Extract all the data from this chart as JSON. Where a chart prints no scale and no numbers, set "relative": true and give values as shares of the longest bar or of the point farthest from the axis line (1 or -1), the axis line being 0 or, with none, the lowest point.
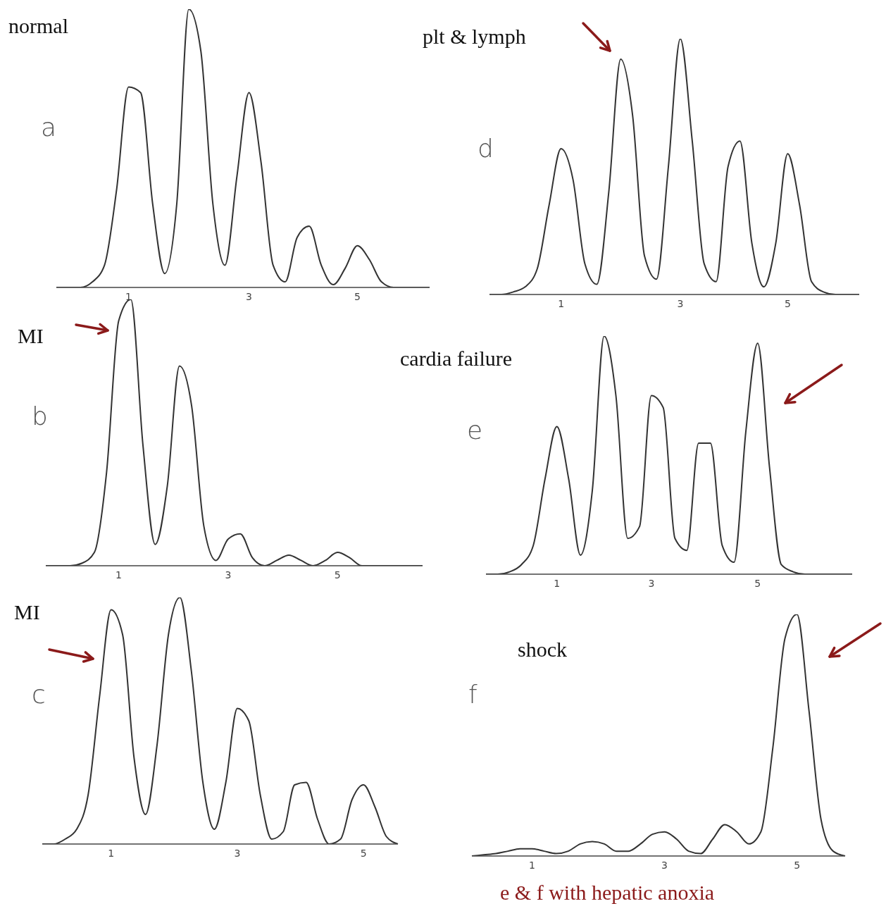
{
  "chart_data": [
    {
      "type": "line",
      "title": "normal",
      "relative": true,
      "color": "#333333",
      "annotations": [
        "a"
      ],
      "categories": [
        null,
        null,
        null,
        null,
        null,
        null,
        "1",
        null,
        null,
        null,
        null,
        null,
        null,
        null,
        null,
        null,
        "3",
        null,
        null,
        null,
        null,
        null,
        null,
        null,
        null,
        "5",
        null,
        null,
        null,
        null,
        null,
        null
      ],
      "values": [
        0,
        0,
        0,
        0.02,
        0.08,
        0.35,
        0.72,
        0.7,
        0.3,
        0.05,
        0.3,
        1,
        0.85,
        0.3,
        0.08,
        0.4,
        0.7,
        0.45,
        0.08,
        0.02,
        0.18,
        0.22,
        0.08,
        0.01,
        0.07,
        0.15,
        0.1,
        0.02,
        0,
        0,
        0,
        0
      ]
    },
    {
      "type": "line",
      "title": "MI",
      "relative": true,
      "color": "#333333",
      "annotations": [
        "b"
      ],
      "categories": [
        null,
        null,
        null,
        null,
        null,
        null,
        "1",
        null,
        null,
        null,
        null,
        null,
        null,
        null,
        null,
        "3",
        null,
        null,
        null,
        null,
        null,
        null,
        null,
        null,
        "5",
        null,
        null,
        null,
        null,
        null,
        null,
        null
      ],
      "values": [
        0,
        0,
        0,
        0.01,
        0.05,
        0.35,
        0.92,
        1,
        0.45,
        0.08,
        0.3,
        0.75,
        0.6,
        0.15,
        0.02,
        0.1,
        0.12,
        0.03,
        0,
        0.02,
        0.04,
        0.02,
        0,
        0.02,
        0.05,
        0.03,
        0,
        0,
        0,
        0,
        0,
        0
      ]
    },
    {
      "type": "line",
      "title": "MI",
      "relative": true,
      "color": "#333333",
      "annotations": [
        "c"
      ],
      "categories": [
        null,
        null,
        null,
        null,
        null,
        null,
        "1",
        null,
        null,
        null,
        null,
        null,
        null,
        null,
        null,
        null,
        null,
        "3",
        null,
        null,
        null,
        null,
        null,
        null,
        null,
        null,
        null,
        null,
        "5",
        null,
        null,
        null
      ],
      "values": [
        0,
        0,
        0.02,
        0.06,
        0.2,
        0.6,
        0.95,
        0.85,
        0.35,
        0.12,
        0.4,
        0.85,
        1,
        0.7,
        0.25,
        0.06,
        0.25,
        0.55,
        0.5,
        0.2,
        0.02,
        0.05,
        0.24,
        0.25,
        0.1,
        0,
        0.02,
        0.18,
        0.24,
        0.15,
        0.03,
        0
      ]
    },
    {
      "type": "line",
      "title": "plt & lymph",
      "relative": true,
      "color": "#333333",
      "annotations": [
        "d"
      ],
      "categories": [
        null,
        null,
        null,
        null,
        null,
        null,
        "1",
        null,
        null,
        null,
        null,
        null,
        null,
        null,
        null,
        null,
        "3",
        null,
        null,
        null,
        null,
        null,
        null,
        null,
        null,
        "5",
        null,
        null,
        null,
        null,
        null,
        null
      ],
      "values": [
        0,
        0,
        0.01,
        0.03,
        0.1,
        0.35,
        0.57,
        0.45,
        0.12,
        0.04,
        0.4,
        0.92,
        0.7,
        0.15,
        0.06,
        0.5,
        1,
        0.6,
        0.12,
        0.05,
        0.5,
        0.6,
        0.2,
        0.03,
        0.2,
        0.55,
        0.35,
        0.05,
        0.01,
        0,
        0,
        0
      ]
    },
    {
      "type": "line",
      "title": "cardia failure",
      "relative": true,
      "color": "#333333",
      "annotations": [
        "e"
      ],
      "categories": [
        null,
        null,
        null,
        null,
        null,
        null,
        "1",
        null,
        null,
        null,
        null,
        null,
        null,
        null,
        "3",
        null,
        null,
        null,
        null,
        null,
        null,
        null,
        null,
        "5",
        null,
        null,
        null,
        null,
        null,
        null,
        null,
        null
      ],
      "values": [
        0,
        0,
        0.01,
        0.04,
        0.12,
        0.4,
        0.62,
        0.4,
        0.08,
        0.35,
        1,
        0.75,
        0.15,
        0.2,
        0.75,
        0.7,
        0.15,
        0.1,
        0.55,
        0.55,
        0.12,
        0.05,
        0.6,
        0.97,
        0.45,
        0.04,
        0.01,
        0,
        0,
        0,
        0,
        0
      ]
    },
    {
      "type": "line",
      "title": "shock",
      "relative": true,
      "color": "#333333",
      "annotations": [
        "f",
        "e & f with hepatic anoxia"
      ],
      "categories": [
        null,
        null,
        null,
        null,
        null,
        "1",
        null,
        null,
        null,
        null,
        null,
        null,
        null,
        null,
        null,
        null,
        "3",
        null,
        null,
        null,
        null,
        null,
        null,
        null,
        null,
        null,
        null,
        "5",
        null,
        null,
        null,
        null
      ],
      "values": [
        0,
        0.005,
        0.01,
        0.02,
        0.03,
        0.03,
        0.02,
        0.01,
        0.02,
        0.05,
        0.06,
        0.05,
        0.02,
        0.02,
        0.05,
        0.09,
        0.1,
        0.07,
        0.02,
        0.01,
        0.07,
        0.13,
        0.1,
        0.05,
        0.1,
        0.45,
        0.9,
        1,
        0.6,
        0.15,
        0.02,
        0
      ]
    }
  ]
}
